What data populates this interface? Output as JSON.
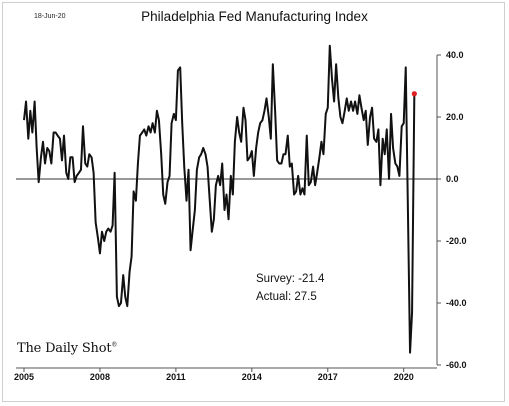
{
  "header": {
    "date_stamp": "18-Jun-20",
    "brand": "The Daily Shot",
    "brand_mark": "®"
  },
  "annotations": {
    "survey": "Survey: -21.4",
    "actual": "Actual:  27.5"
  },
  "colors": {
    "line": "#111111",
    "latest_point": "#e02020",
    "zero_line": "#333333"
  },
  "chart_data": {
    "type": "line",
    "title": "Philadelphia Fed Manufacturing Index",
    "xlabel": "",
    "ylabel": "",
    "xlim": [
      2005.0,
      2020.92
    ],
    "ylim": [
      -60,
      40
    ],
    "yticks": [
      40,
      20,
      0,
      -20,
      -40,
      -60
    ],
    "ytick_labels": [
      "40.0",
      "20.0",
      "0.0",
      "-20.0",
      "-40.0",
      "-60.0"
    ],
    "xticks": [
      2005,
      2008,
      2011,
      2014,
      2017,
      2020
    ],
    "xtick_labels": [
      "2005",
      "2008",
      "2011",
      "2014",
      "2017",
      "2020"
    ],
    "grid": false,
    "axis_side": "right",
    "series": [
      {
        "x": [
          2005.0,
          2005.08,
          2005.17,
          2005.25,
          2005.33,
          2005.42,
          2005.5,
          2005.58,
          2005.67,
          2005.75,
          2005.83,
          2005.92,
          2006.0,
          2006.08,
          2006.17,
          2006.25,
          2006.33,
          2006.42,
          2006.5,
          2006.58,
          2006.67,
          2006.75,
          2006.83,
          2006.92,
          2007.0,
          2007.08,
          2007.17,
          2007.25,
          2007.33,
          2007.42,
          2007.5,
          2007.58,
          2007.67,
          2007.75,
          2007.83,
          2007.92,
          2008.0,
          2008.08,
          2008.17,
          2008.25,
          2008.33,
          2008.42,
          2008.5,
          2008.58,
          2008.67,
          2008.75,
          2008.83,
          2008.92,
          2009.0,
          2009.08,
          2009.17,
          2009.25,
          2009.33,
          2009.42,
          2009.5,
          2009.58,
          2009.67,
          2009.75,
          2009.83,
          2009.92,
          2010.0,
          2010.08,
          2010.17,
          2010.25,
          2010.33,
          2010.42,
          2010.5,
          2010.58,
          2010.67,
          2010.75,
          2010.83,
          2010.92,
          2011.0,
          2011.08,
          2011.17,
          2011.25,
          2011.33,
          2011.42,
          2011.5,
          2011.58,
          2011.67,
          2011.75,
          2011.83,
          2011.92,
          2012.0,
          2012.08,
          2012.17,
          2012.25,
          2012.33,
          2012.42,
          2012.5,
          2012.58,
          2012.67,
          2012.75,
          2012.83,
          2012.92,
          2013.0,
          2013.08,
          2013.17,
          2013.25,
          2013.33,
          2013.42,
          2013.5,
          2013.58,
          2013.67,
          2013.75,
          2013.83,
          2013.92,
          2014.0,
          2014.08,
          2014.17,
          2014.25,
          2014.33,
          2014.42,
          2014.5,
          2014.58,
          2014.67,
          2014.75,
          2014.83,
          2014.92,
          2015.0,
          2015.08,
          2015.17,
          2015.25,
          2015.33,
          2015.42,
          2015.5,
          2015.58,
          2015.67,
          2015.75,
          2015.83,
          2015.92,
          2016.0,
          2016.08,
          2016.17,
          2016.25,
          2016.33,
          2016.42,
          2016.5,
          2016.58,
          2016.67,
          2016.75,
          2016.83,
          2016.92,
          2017.0,
          2017.08,
          2017.17,
          2017.25,
          2017.33,
          2017.42,
          2017.5,
          2017.58,
          2017.67,
          2017.75,
          2017.83,
          2017.92,
          2018.0,
          2018.08,
          2018.17,
          2018.25,
          2018.33,
          2018.42,
          2018.5,
          2018.58,
          2018.67,
          2018.75,
          2018.83,
          2018.92,
          2019.0,
          2019.08,
          2019.17,
          2019.25,
          2019.33,
          2019.42,
          2019.5,
          2019.58,
          2019.67,
          2019.75,
          2019.83,
          2019.92,
          2020.0,
          2020.08,
          2020.17,
          2020.25,
          2020.33,
          2020.42
        ],
        "y": [
          19,
          25,
          13,
          22,
          15,
          25,
          10,
          -1,
          7,
          12,
          5,
          10,
          9,
          5,
          15,
          15,
          14,
          13,
          6,
          14,
          2,
          0,
          7,
          7,
          -1,
          1,
          2,
          3,
          17,
          5,
          4,
          8,
          7,
          2,
          -14,
          -19,
          -24,
          -17,
          -20,
          -17,
          -16,
          -17,
          -15,
          2,
          -38,
          -41,
          -40,
          -31,
          -38,
          -41,
          -30,
          -25,
          -4,
          -7,
          5,
          14,
          15,
          16,
          14,
          17,
          15,
          18,
          15,
          22,
          19,
          8,
          -5,
          -8,
          -1,
          1,
          18,
          21,
          19,
          35,
          36,
          18,
          4,
          -7,
          3,
          -23,
          -16,
          -10,
          3,
          7,
          8,
          10,
          8,
          4,
          -6,
          -17,
          -13,
          -2,
          1,
          -2,
          5,
          -10,
          -5,
          -13,
          1,
          -5,
          12,
          20,
          15,
          12,
          23,
          19,
          6,
          7,
          9,
          1,
          10,
          15,
          18,
          19,
          22,
          26,
          20,
          13,
          37,
          22,
          6,
          5,
          5,
          8,
          8,
          14,
          4,
          5,
          -5,
          -4,
          1,
          -5,
          -3,
          -5,
          14,
          -2,
          -1,
          4,
          -2,
          2,
          7,
          12,
          8,
          21,
          23,
          43,
          32,
          25,
          37,
          26,
          20,
          18,
          22,
          26,
          22,
          25,
          22,
          25,
          21,
          27,
          23,
          19,
          22,
          11,
          20,
          23,
          13,
          12,
          16,
          -2,
          13,
          8,
          16,
          0,
          21,
          10,
          5,
          4,
          1,
          17,
          18,
          36,
          -12,
          -56,
          -43,
          27.5
        ]
      }
    ],
    "latest_point": {
      "x": 2020.42,
      "y": 27.5
    },
    "annotations": [
      "Survey: -21.4",
      "Actual:  27.5"
    ]
  }
}
